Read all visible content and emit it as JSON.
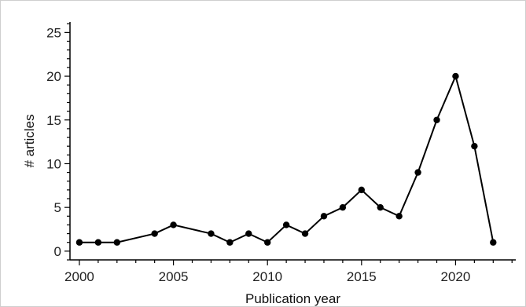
{
  "chart_data": {
    "type": "line",
    "title": "",
    "xlabel": "Publication year",
    "ylabel": "# articles",
    "xlim": [
      1999.5,
      2023.2
    ],
    "ylim": [
      -1.0,
      26.2
    ],
    "x_ticks": [
      2000,
      2005,
      2010,
      2015,
      2020
    ],
    "y_ticks": [
      0,
      5,
      10,
      15,
      20,
      25
    ],
    "y_minor_step": 1,
    "x_minor_step": 1,
    "grid": false,
    "legend": "none",
    "colors": {
      "line": "#000000",
      "marker": "#000000",
      "axis": "#000000"
    },
    "series": [
      {
        "x": [
          2000,
          2001,
          2002,
          2004,
          2005,
          2007,
          2008,
          2009,
          2010,
          2011,
          2012,
          2013,
          2014,
          2015,
          2016,
          2017,
          2018,
          2019,
          2020,
          2021,
          2022
        ],
        "y": [
          1,
          1,
          1,
          2,
          3,
          2,
          1,
          2,
          1,
          3,
          2,
          4,
          5,
          7,
          5,
          4,
          9,
          15,
          20,
          12,
          1
        ]
      }
    ]
  }
}
